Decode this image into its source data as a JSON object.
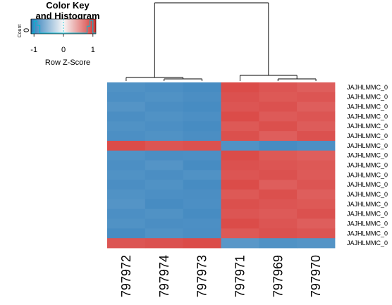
{
  "chart_data": {
    "type": "heatmap",
    "color_key": {
      "title_line1": "Color Key",
      "title_line2": "and Histogram",
      "y_axis_label": "Count",
      "y_tick": "0",
      "x_ticks": [
        "-1",
        "0",
        "1"
      ],
      "x_tick_values": [
        -1,
        0,
        1
      ],
      "x_label": "Row Z-Score",
      "low_color": "#2b7bba",
      "mid_color": "#f7f7f7",
      "high_color": "#d6312e",
      "histogram_color": "#00bcd4",
      "value_range": [
        -1.1,
        1.1
      ]
    },
    "columns": [
      "797972",
      "797974",
      "797973",
      "797971",
      "797969",
      "797970"
    ],
    "row_labels": [
      "JAJHLMMC_0",
      "JAJHLMMC_0",
      "JAJHLMMC_0",
      "JAJHLMMC_0",
      "JAJHLMMC_0",
      "JAJHLMMC_0",
      "JAJHLMMC_0",
      "JAJHLMMC_0",
      "JAJHLMMC_0",
      "JAJHLMMC_0",
      "JAJHLMMC_0",
      "JAJHLMMC_0",
      "JAJHLMMC_0",
      "JAJHLMMC_0",
      "JAJHLMMC_0",
      "JAJHLMMC_0",
      "JAJHLMMC_0"
    ],
    "values": [
      [
        -0.9,
        -0.92,
        -0.95,
        0.95,
        0.9,
        0.85
      ],
      [
        -0.92,
        -0.9,
        -0.93,
        0.92,
        0.88,
        0.9
      ],
      [
        -0.88,
        -0.93,
        -0.95,
        0.9,
        0.92,
        0.85
      ],
      [
        -0.93,
        -0.9,
        -0.92,
        0.95,
        0.87,
        0.9
      ],
      [
        -0.9,
        -0.92,
        -0.95,
        0.88,
        0.93,
        0.86
      ],
      [
        -0.92,
        -0.9,
        -0.93,
        0.93,
        0.85,
        0.92
      ],
      [
        0.95,
        0.9,
        0.92,
        -0.9,
        -0.95,
        -0.92
      ],
      [
        -0.9,
        -0.93,
        -0.92,
        0.95,
        0.88,
        0.85
      ],
      [
        -0.92,
        -0.88,
        -0.95,
        0.92,
        0.9,
        0.88
      ],
      [
        -0.9,
        -0.93,
        -0.9,
        0.9,
        0.92,
        0.87
      ],
      [
        -0.93,
        -0.9,
        -0.95,
        0.95,
        0.85,
        0.9
      ],
      [
        -0.9,
        -0.92,
        -0.93,
        0.88,
        0.93,
        0.85
      ],
      [
        -0.88,
        -0.95,
        -0.92,
        0.93,
        0.9,
        0.88
      ],
      [
        -0.92,
        -0.9,
        -0.95,
        0.9,
        0.87,
        0.92
      ],
      [
        -0.9,
        -0.93,
        -0.92,
        0.95,
        0.9,
        0.85
      ],
      [
        -0.95,
        -0.9,
        -0.93,
        0.88,
        0.92,
        0.9
      ],
      [
        0.9,
        0.92,
        0.95,
        -0.85,
        -0.9,
        -0.88
      ]
    ],
    "row_dendrogram": false,
    "column_dendrogram": true,
    "column_clusters": [
      [
        "797972",
        "797974",
        "797973"
      ],
      [
        "797971",
        "797969",
        "797970"
      ]
    ]
  }
}
